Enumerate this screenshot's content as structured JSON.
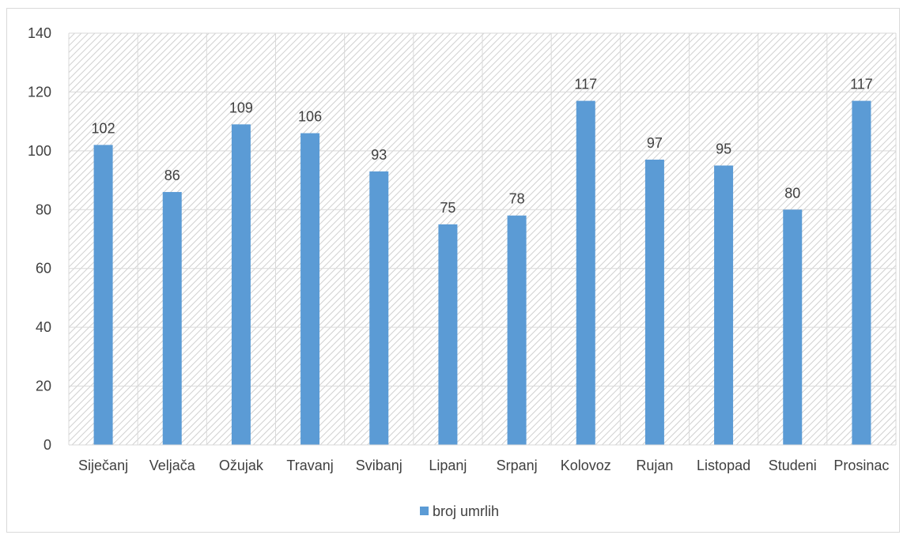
{
  "chart_data": {
    "type": "bar",
    "categories": [
      "Siječanj",
      "Veljača",
      "Ožujak",
      "Travanj",
      "Svibanj",
      "Lipanj",
      "Srpanj",
      "Kolovoz",
      "Rujan",
      "Listopad",
      "Studeni",
      "Prosinac"
    ],
    "series": [
      {
        "name": "broj umrlih",
        "values": [
          102,
          86,
          109,
          106,
          93,
          75,
          78,
          117,
          97,
          95,
          80,
          117
        ],
        "color": "#5b9bd5"
      }
    ],
    "title": "",
    "xlabel": "",
    "ylabel": "",
    "ylim": [
      0,
      140
    ],
    "yticks": [
      0,
      20,
      40,
      60,
      80,
      100,
      120,
      140
    ],
    "grid": true,
    "legend_position": "bottom",
    "data_labels": true,
    "plot_background": "hatched"
  }
}
